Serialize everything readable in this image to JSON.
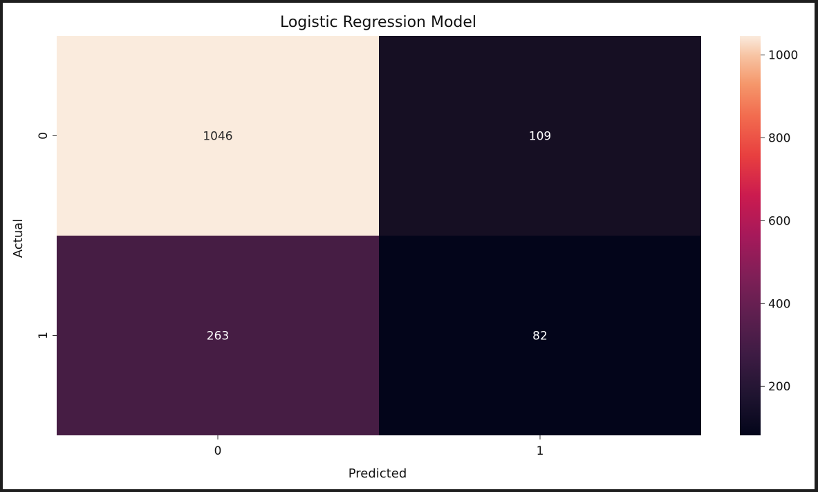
{
  "chart_data": {
    "type": "heatmap",
    "title": "Logistic Regression Model",
    "xlabel": "Predicted",
    "ylabel": "Actual",
    "x_categories": [
      "0",
      "1"
    ],
    "y_categories": [
      "0",
      "1"
    ],
    "values": [
      [
        1046,
        109
      ],
      [
        263,
        82
      ]
    ],
    "cell_labels": [
      [
        "1046",
        "109"
      ],
      [
        "263",
        "82"
      ]
    ],
    "colormap": "rocket",
    "colorbar": {
      "range": [
        82,
        1046
      ],
      "ticks": [
        200,
        400,
        600,
        800,
        1000
      ],
      "tick_labels": [
        "200",
        "400",
        "600",
        "800",
        "1000"
      ]
    },
    "cell_colors": [
      [
        "#faebdd",
        "#160f23"
      ],
      [
        "#461d44",
        "#03051a"
      ]
    ]
  }
}
